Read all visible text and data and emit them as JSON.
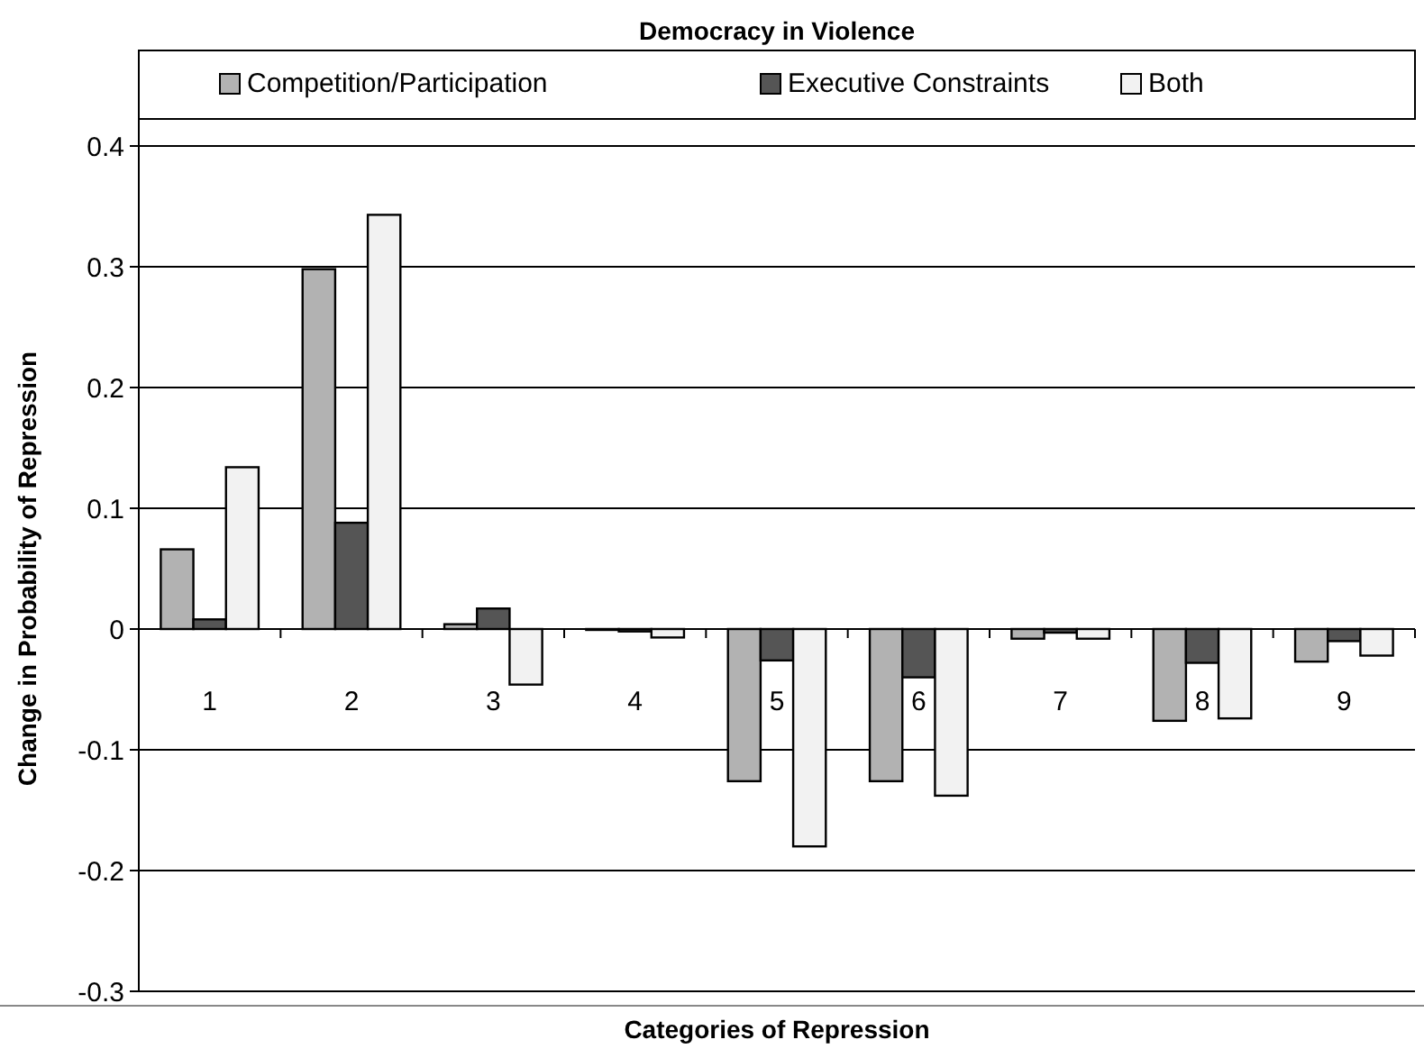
{
  "chart_data": {
    "type": "bar",
    "title": "Democracy in Violence",
    "xlabel": "Categories of Repression",
    "ylabel": "Change in Probability of Repression",
    "categories": [
      "1",
      "2",
      "3",
      "4",
      "5",
      "6",
      "7",
      "8",
      "9"
    ],
    "series": [
      {
        "name": "Competition/Participation",
        "color": "#b2b2b2",
        "values": [
          0.066,
          0.298,
          0.004,
          0,
          -0.126,
          -0.126,
          -0.008,
          -0.076,
          -0.027
        ]
      },
      {
        "name": "Executive Constraints",
        "color": "#555555",
        "values": [
          0.008,
          0.088,
          0.017,
          -0.002,
          -0.026,
          -0.04,
          -0.003,
          -0.028,
          -0.01
        ]
      },
      {
        "name": "Both",
        "color": "#f2f2f2",
        "values": [
          0.134,
          0.343,
          -0.046,
          -0.007,
          -0.18,
          -0.138,
          -0.008,
          -0.074,
          -0.022
        ]
      }
    ],
    "ylim": [
      -0.3,
      0.4
    ],
    "yticks": [
      {
        "value": -0.3,
        "label": "-0.3"
      },
      {
        "value": -0.2,
        "label": "-0.2"
      },
      {
        "value": -0.1,
        "label": "-0.1"
      },
      {
        "value": 0,
        "label": "0"
      },
      {
        "value": 0.1,
        "label": "0.1"
      },
      {
        "value": 0.2,
        "label": "0.2"
      },
      {
        "value": 0.3,
        "label": "0.3"
      },
      {
        "value": 0.4,
        "label": "0.4"
      }
    ],
    "grid": "y",
    "legend": "top"
  }
}
